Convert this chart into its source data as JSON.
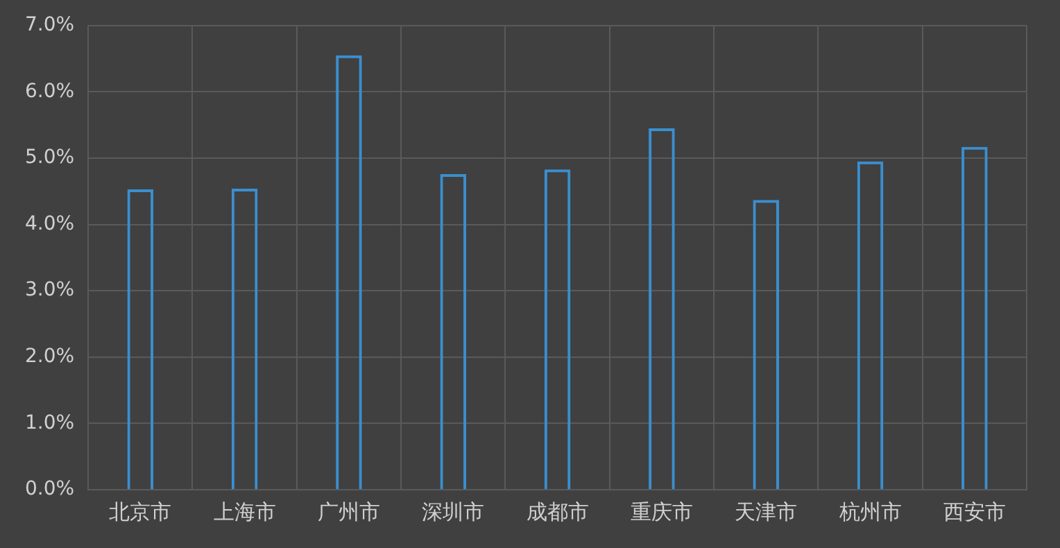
{
  "chart_data": {
    "type": "bar",
    "categories": [
      "北京市",
      "上海市",
      "广州市",
      "深圳市",
      "成都市",
      "重庆市",
      "天津市",
      "杭州市",
      "西安市"
    ],
    "values": [
      4.53,
      4.54,
      6.55,
      4.76,
      4.83,
      5.45,
      4.37,
      4.95,
      5.17
    ],
    "color": "#3a8fd0",
    "ylim": [
      0,
      7
    ],
    "yticks": [
      {
        "value": 0,
        "label": "0.0%"
      },
      {
        "value": 1,
        "label": "1.0%"
      },
      {
        "value": 2,
        "label": "2.0%"
      },
      {
        "value": 3,
        "label": "3.0%"
      },
      {
        "value": 4,
        "label": "4.0%"
      },
      {
        "value": 5,
        "label": "5.0%"
      },
      {
        "value": 6,
        "label": "6.0%"
      },
      {
        "value": 7,
        "label": "7.0%"
      }
    ],
    "grid": true
  }
}
